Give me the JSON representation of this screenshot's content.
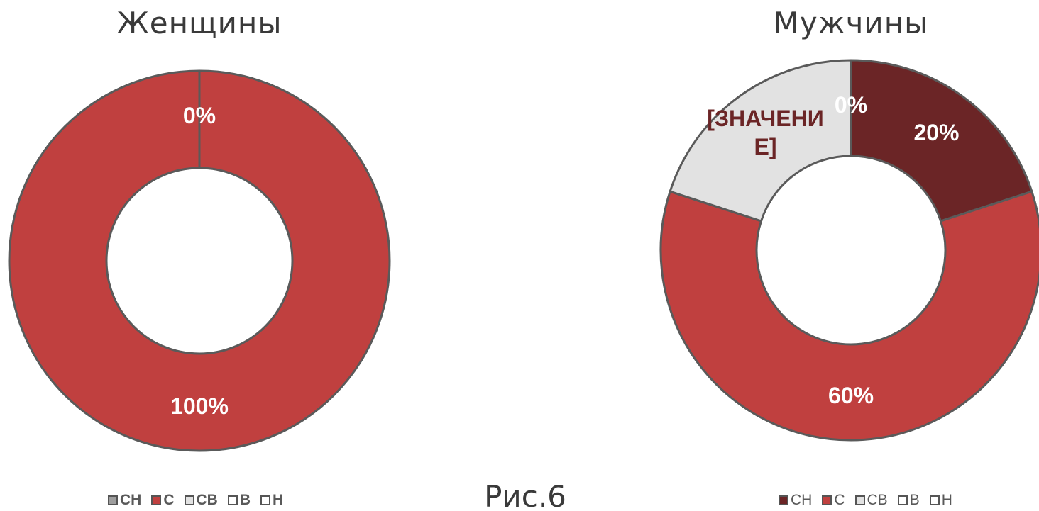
{
  "caption": "Рис.6",
  "chart_data": [
    {
      "type": "donut",
      "title": "Женщины",
      "categories": [
        "СН",
        "С",
        "СВ",
        "В",
        "Н"
      ],
      "values": [
        0,
        100,
        0,
        0,
        0
      ],
      "value_labels": [
        "0%",
        "100%",
        null,
        null,
        null
      ],
      "colors": [
        "#9e9e9e",
        "#c0403f",
        "#e2e2e2",
        "#ffffff",
        "#ffffff"
      ]
    },
    {
      "type": "donut",
      "title": "Мужчины",
      "categories": [
        "СН",
        "С",
        "СВ",
        "В",
        "Н"
      ],
      "values": [
        20,
        60,
        20,
        0,
        0
      ],
      "value_labels": [
        "20%",
        "60%",
        "[ЗНАЧЕНИЕ]",
        "0%",
        null
      ],
      "colors": [
        "#6b2526",
        "#c0403f",
        "#e2e2e2",
        "#ffffff",
        "#ffffff"
      ]
    }
  ]
}
